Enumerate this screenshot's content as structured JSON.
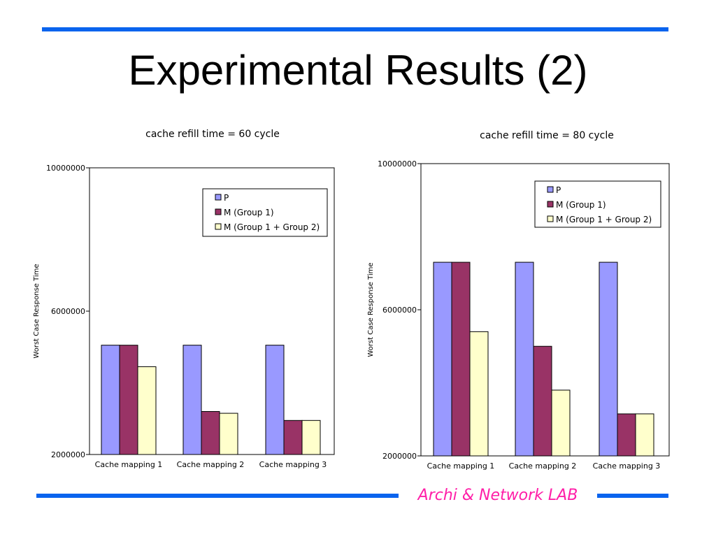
{
  "slide": {
    "title": "Experimental Results (2)",
    "footer": "Archi & Network LAB"
  },
  "colors": {
    "rule": "#0a64ee",
    "footer_text": "#ff1fa8",
    "series": [
      "#9999ff",
      "#993366",
      "#ffffcc"
    ]
  },
  "chart_data": [
    {
      "type": "bar",
      "title": "cache refill time = 60 cycle",
      "xlabel": "",
      "ylabel": "Worst Case Response Time",
      "ylim": [
        2000000,
        10000000
      ],
      "yticks": [
        2000000,
        6000000,
        10000000
      ],
      "ytick_labels": [
        "2000000",
        "6000000",
        "10000000"
      ],
      "categories": [
        "Cache mapping 1",
        "Cache mapping 2",
        "Cache mapping 3"
      ],
      "series": [
        {
          "name": "P",
          "values": [
            5050000,
            5050000,
            5050000
          ]
        },
        {
          "name": "M (Group 1)",
          "values": [
            5050000,
            3200000,
            2950000
          ]
        },
        {
          "name": "M (Group 1 + Group 2)",
          "values": [
            4450000,
            3150000,
            2950000
          ]
        }
      ],
      "legend": "top-right",
      "grid": false
    },
    {
      "type": "bar",
      "title": "cache refill time = 80 cycle",
      "xlabel": "",
      "ylabel": "Worst Case Response Time",
      "ylim": [
        2000000,
        10000000
      ],
      "yticks": [
        2000000,
        6000000,
        10000000
      ],
      "ytick_labels": [
        "2000000",
        "6000000",
        "10000000"
      ],
      "categories": [
        "Cache mapping 1",
        "Cache mapping 2",
        "Cache mapping 3"
      ],
      "series": [
        {
          "name": "P",
          "values": [
            7300000,
            7300000,
            7300000
          ]
        },
        {
          "name": "M (Group 1)",
          "values": [
            7300000,
            5000000,
            3150000
          ]
        },
        {
          "name": "M (Group 1 + Group 2)",
          "values": [
            5400000,
            3800000,
            3150000
          ]
        }
      ],
      "legend": "top-right",
      "grid": false
    }
  ]
}
